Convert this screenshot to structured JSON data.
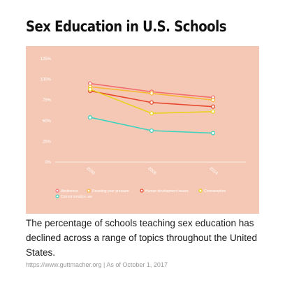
{
  "header": {
    "title": "Sex Education in U.S. Schools"
  },
  "caption": "The percentage of schools teaching sex education has declined across a range of topics throughout the United States.",
  "source": "https://www.guttmacher.org | As of October 1, 2017",
  "chart_data": {
    "type": "line",
    "title": "",
    "x": [
      "2000",
      "2006",
      "2014"
    ],
    "ylim": [
      0,
      125
    ],
    "y_ticks": [
      0,
      25,
      50,
      75,
      100,
      125
    ],
    "y_tick_labels": [
      "0%",
      "25%",
      "50%",
      "75%",
      "100%",
      "125%"
    ],
    "grid": false,
    "legend_position": "bottom",
    "series": [
      {
        "name": "Abstinence",
        "color": "#f26d6d",
        "values": [
          95,
          85,
          78
        ]
      },
      {
        "name": "Resisting peer pressure",
        "color": "#f7b739",
        "values": [
          91,
          83,
          75
        ]
      },
      {
        "name": "Human development issues",
        "color": "#e8462c",
        "values": [
          86,
          72,
          67
        ]
      },
      {
        "name": "Contraception",
        "color": "#e8d21a",
        "values": [
          88,
          59,
          61
        ]
      },
      {
        "name": "Correct condom use",
        "color": "#3ed3bd",
        "values": [
          54,
          38,
          35
        ]
      }
    ]
  }
}
